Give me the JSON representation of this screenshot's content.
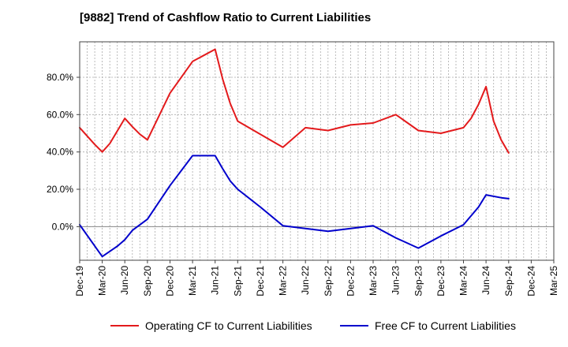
{
  "title": "[9882]  Trend of Cashflow Ratio to Current Liabilities",
  "chart_data": {
    "type": "line",
    "title": "[9882]  Trend of Cashflow Ratio to Current Liabilities",
    "xlabel": "",
    "ylabel": "",
    "x": [
      "Dec-19",
      "Mar-20",
      "Jun-20",
      "Sep-20",
      "Dec-20",
      "Mar-21",
      "Jun-21",
      "Sep-21",
      "Dec-21",
      "Mar-22",
      "Jun-22",
      "Sep-22",
      "Dec-22",
      "Mar-23",
      "Jun-23",
      "Sep-23",
      "Dec-23",
      "Mar-24",
      "Jun-24",
      "Sep-24",
      "Dec-24",
      "Mar-25"
    ],
    "x_tick_labels": [
      "Dec-19",
      "Mar-20",
      "Jun-20",
      "Sep-20",
      "Dec-20",
      "Mar-21",
      "Jun-21",
      "Sep-21",
      "Dec-21",
      "Mar-22",
      "Jun-22",
      "Sep-22",
      "Dec-22",
      "Mar-23",
      "Jun-23",
      "Sep-23",
      "Dec-23",
      "Mar-24",
      "Jun-24",
      "Sep-24",
      "Dec-24",
      "Mar-25"
    ],
    "y_ticks": [
      0,
      20,
      40,
      60,
      80
    ],
    "y_tick_labels": [
      "0.0%",
      "20.0%",
      "40.0%",
      "60.0%",
      "80.0%"
    ],
    "ylim": [
      -18,
      99
    ],
    "grid": true,
    "legend_position": "bottom",
    "series": [
      {
        "name": "Operating CF to Current Liabilities",
        "color": "#e31a1c",
        "points": [
          {
            "x": "Dec-19",
            "y": 53.0
          },
          {
            "x": "Feb-20",
            "y": 44.0
          },
          {
            "x": "Mar-20",
            "y": 40.0
          },
          {
            "x": "Apr-20",
            "y": 44.5
          },
          {
            "x": "Jun-20",
            "y": 58.0
          },
          {
            "x": "Jul-20",
            "y": 53.5
          },
          {
            "x": "Aug-20",
            "y": 49.5
          },
          {
            "x": "Sep-20",
            "y": 46.5
          },
          {
            "x": "Dec-20",
            "y": 71.5
          },
          {
            "x": "Mar-21",
            "y": 88.5
          },
          {
            "x": "Jun-21",
            "y": 95.0
          },
          {
            "x": "Jul-21",
            "y": 79.0
          },
          {
            "x": "Aug-21",
            "y": 66.0
          },
          {
            "x": "Sep-21",
            "y": 56.5
          },
          {
            "x": "Dec-21",
            "y": 49.5
          },
          {
            "x": "Mar-22",
            "y": 42.5
          },
          {
            "x": "Jun-22",
            "y": 53.0
          },
          {
            "x": "Sep-22",
            "y": 51.5
          },
          {
            "x": "Dec-22",
            "y": 54.5
          },
          {
            "x": "Mar-23",
            "y": 55.5
          },
          {
            "x": "Jun-23",
            "y": 60.0
          },
          {
            "x": "Sep-23",
            "y": 51.5
          },
          {
            "x": "Dec-23",
            "y": 50.0
          },
          {
            "x": "Mar-24",
            "y": 53.0
          },
          {
            "x": "Apr-24",
            "y": 58.0
          },
          {
            "x": "May-24",
            "y": 65.5
          },
          {
            "x": "Jun-24",
            "y": 75.0
          },
          {
            "x": "Jul-24",
            "y": 56.5
          },
          {
            "x": "Aug-24",
            "y": 46.5
          },
          {
            "x": "Sep-24",
            "y": 39.5
          }
        ]
      },
      {
        "name": "Free CF to Current Liabilities",
        "color": "#0000cc",
        "points": [
          {
            "x": "Dec-19",
            "y": 1.0
          },
          {
            "x": "Mar-20",
            "y": -16.0
          },
          {
            "x": "May-20",
            "y": -10.5
          },
          {
            "x": "Jun-20",
            "y": -7.0
          },
          {
            "x": "Jul-20",
            "y": -2.0
          },
          {
            "x": "Sep-20",
            "y": 4.0
          },
          {
            "x": "Dec-20",
            "y": 22.0
          },
          {
            "x": "Mar-21",
            "y": 38.0
          },
          {
            "x": "Jun-21",
            "y": 38.0
          },
          {
            "x": "Jul-21",
            "y": 31.0
          },
          {
            "x": "Aug-21",
            "y": 24.5
          },
          {
            "x": "Sep-21",
            "y": 20.0
          },
          {
            "x": "Dec-21",
            "y": 10.5
          },
          {
            "x": "Mar-22",
            "y": 0.5
          },
          {
            "x": "Jun-22",
            "y": -1.0
          },
          {
            "x": "Sep-22",
            "y": -2.5
          },
          {
            "x": "Dec-22",
            "y": -1.0
          },
          {
            "x": "Mar-23",
            "y": 0.5
          },
          {
            "x": "Jun-23",
            "y": -6.0
          },
          {
            "x": "Sep-23",
            "y": -11.5
          },
          {
            "x": "Dec-23",
            "y": -5.0
          },
          {
            "x": "Mar-24",
            "y": 1.0
          },
          {
            "x": "May-24",
            "y": 10.5
          },
          {
            "x": "Jun-24",
            "y": 17.0
          },
          {
            "x": "Aug-24",
            "y": 15.5
          },
          {
            "x": "Sep-24",
            "y": 15.0
          }
        ]
      }
    ]
  }
}
